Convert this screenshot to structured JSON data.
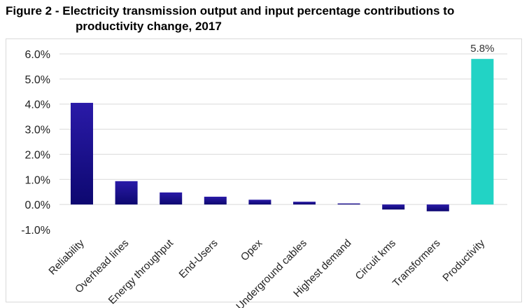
{
  "title_line1": "Figure 2 - Electricity transmission output and input percentage contributions to",
  "title_line2": "productivity change, 2017",
  "colors": {
    "bar_dark_top": "#2a1aa8",
    "bar_dark_bottom": "#0d0870",
    "bar_highlight": "#22d3c5",
    "grid": "#d9d9d9"
  },
  "chart_data": {
    "type": "bar",
    "categories": [
      "Reliability",
      "Overhead lines",
      "Energy throughput",
      "End-Users",
      "Opex",
      "Underground cables",
      "Highest demand",
      "Circuit kms",
      "Transformers",
      "Productivity"
    ],
    "values": [
      4.05,
      0.93,
      0.48,
      0.31,
      0.19,
      0.11,
      0.03,
      -0.2,
      -0.27,
      5.8
    ],
    "highlight_index": 9,
    "data_labels": [
      {
        "index": 9,
        "text": "5.8%"
      }
    ],
    "yticks": [
      "6.0%",
      "5.0%",
      "4.0%",
      "3.0%",
      "2.0%",
      "1.0%",
      "0.0%",
      "-1.0%"
    ],
    "ylim": [
      -1.0,
      6.0
    ],
    "grid": true,
    "legend": "none"
  }
}
